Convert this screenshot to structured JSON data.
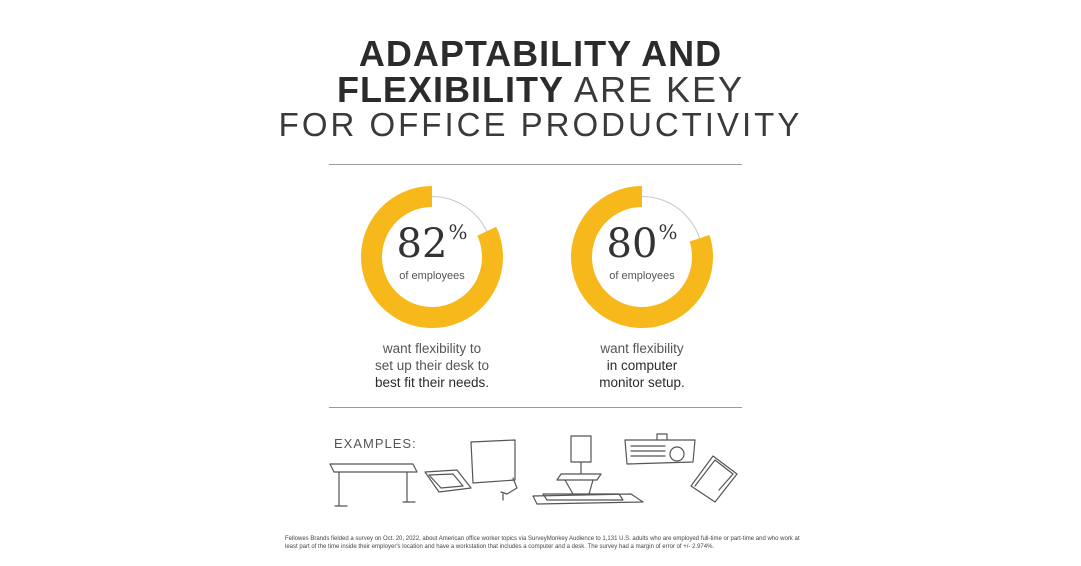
{
  "title": {
    "line1": "ADAPTABILITY AND",
    "line2_bold": "FLEXIBILITY",
    "line2_light": "ARE KEY",
    "line3": "FOR OFFICE PRODUCTIVITY"
  },
  "colors": {
    "accent": "#F7B81B",
    "track": "#c8c8c8",
    "text": "#2b2b2b"
  },
  "chart_data": {
    "type": "pie",
    "series": [
      {
        "value": 82,
        "value_label": "82",
        "unit": "%",
        "sublabel": "of employees",
        "desc_line1": "want flexibility to",
        "desc_line2": "set up their desk to",
        "desc_line3": "best fit their needs."
      },
      {
        "value": 80,
        "value_label": "80",
        "unit": "%",
        "sublabel": "of employees",
        "desc_line1": "want flexibility",
        "desc_line2": "in computer",
        "desc_line3": "monitor setup."
      }
    ]
  },
  "examples_label": "EXAMPLES:",
  "example_icons": [
    "standing-desk-icon",
    "monitor-arm-icon",
    "sit-stand-converter-icon",
    "keyboard-tray-icon",
    "laptop-riser-icon"
  ],
  "footnote": "Fellowes Brands fielded a survey on Oct. 20, 2022, about American office worker topics via SurveyMonkey Audience to 1,131 U.S. adults who are employed full-time or part-time and who work at least part of the time inside their employer's location and have a workstation that includes a computer and a desk. The survey had a margin of error of +/- 2.974%."
}
